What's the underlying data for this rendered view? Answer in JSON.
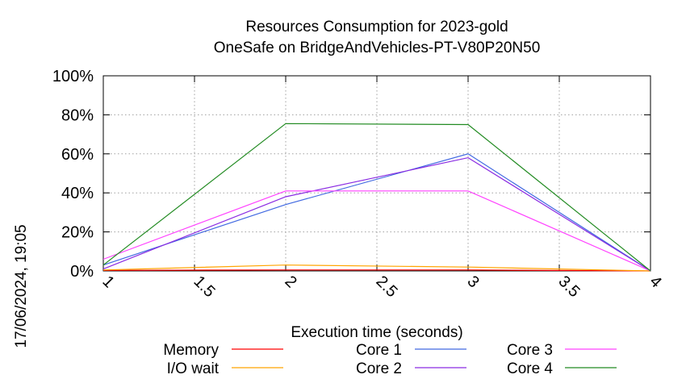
{
  "chart_data": {
    "type": "line",
    "title_line1": "Resources Consumption for 2023-gold",
    "title_line2": "OneSafe on BridgeAndVehicles-PT-V80P20N50",
    "xlabel": "Execution time (seconds)",
    "ylabel": "",
    "side_label": "17/06/2024, 19:05",
    "xlim": [
      1,
      4
    ],
    "ylim": [
      0,
      100
    ],
    "x_ticks": [
      "1",
      "1.5",
      "2",
      "2.5",
      "3",
      "3.5",
      "4"
    ],
    "y_ticks": [
      "0%",
      "20%",
      "40%",
      "60%",
      "80%",
      "100%"
    ],
    "grid": true,
    "legend_position": "bottom",
    "series": [
      {
        "name": "Memory",
        "color": "#ff0000",
        "x": [
          1,
          2,
          3,
          4
        ],
        "y": [
          0.3,
          0.5,
          0.5,
          0
        ]
      },
      {
        "name": "I/O wait",
        "color": "#ffa500",
        "x": [
          1,
          2,
          3,
          4
        ],
        "y": [
          0.5,
          3,
          2,
          0
        ]
      },
      {
        "name": "Core 1",
        "color": "#4169e1",
        "x": [
          1,
          2,
          3,
          4
        ],
        "y": [
          3,
          34,
          60,
          0
        ]
      },
      {
        "name": "Core 2",
        "color": "#8a2be2",
        "x": [
          1,
          2,
          3,
          4
        ],
        "y": [
          1,
          38,
          58,
          0
        ]
      },
      {
        "name": "Core 3",
        "color": "#ff40ff",
        "x": [
          1,
          2,
          3,
          4
        ],
        "y": [
          6,
          41,
          41,
          0
        ]
      },
      {
        "name": "Core 4",
        "color": "#228b22",
        "x": [
          1,
          2,
          3,
          4
        ],
        "y": [
          3,
          75.5,
          75,
          0
        ]
      }
    ]
  }
}
